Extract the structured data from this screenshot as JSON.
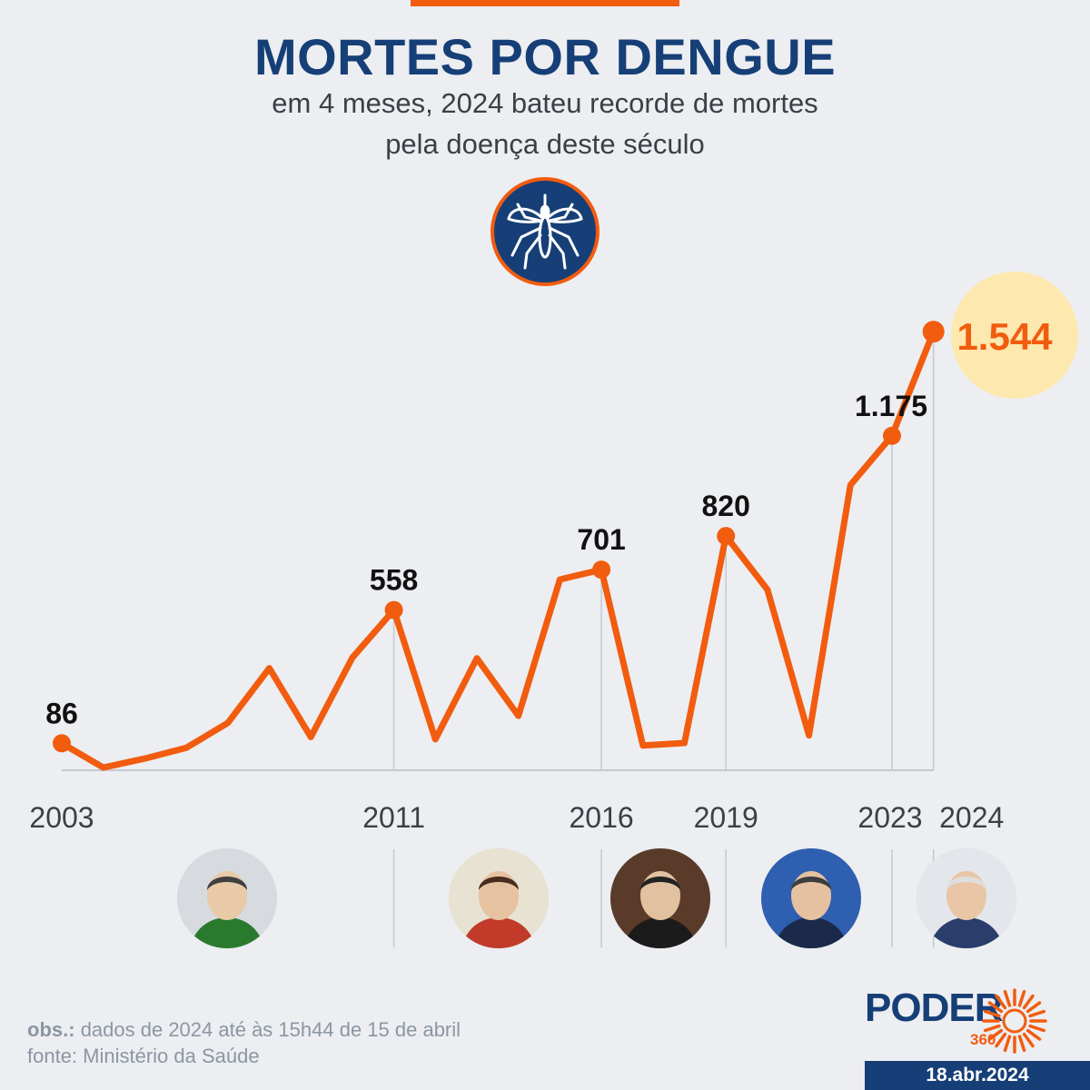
{
  "header": {
    "title": "MORTES POR DENGUE",
    "subtitle_line1": "em 4 meses, 2024 bateu recorde de mortes",
    "subtitle_line2": "pela doença deste século",
    "icon": "mosquito-icon"
  },
  "chart_data": {
    "type": "line",
    "title": "MORTES POR DENGUE",
    "x": [
      2003,
      2004,
      2005,
      2006,
      2007,
      2008,
      2009,
      2010,
      2011,
      2012,
      2013,
      2014,
      2015,
      2016,
      2017,
      2018,
      2019,
      2020,
      2021,
      2022,
      2023,
      2024
    ],
    "values": [
      86,
      0,
      32,
      70,
      158,
      352,
      108,
      389,
      558,
      100,
      387,
      183,
      666,
      701,
      78,
      87,
      820,
      630,
      114,
      1001,
      1175,
      1544
    ],
    "labeled_points": [
      {
        "x": 2003,
        "label": "86"
      },
      {
        "x": 2011,
        "label": "558"
      },
      {
        "x": 2016,
        "label": "701"
      },
      {
        "x": 2019,
        "label": "820"
      },
      {
        "x": 2023,
        "label": "1.175"
      },
      {
        "x": 2024,
        "label": "1.544"
      }
    ],
    "tick_labels": [
      "2003",
      "2011",
      "2016",
      "2019",
      "2023",
      "2024"
    ],
    "highlight": "2024",
    "colors": {
      "line": "#f25c0f",
      "highlight_bg": "#fde9b0",
      "highlight_text": "#f25c0f",
      "grid": "#c4c9d1",
      "axis": "#c4c9d1"
    },
    "grid": false
  },
  "presidents": [
    {
      "icon": "portrait-lula-2003",
      "from": 2003,
      "to": 2011
    },
    {
      "icon": "portrait-dilma",
      "from": 2011,
      "to": 2016
    },
    {
      "icon": "portrait-temer",
      "from": 2016,
      "to": 2019
    },
    {
      "icon": "portrait-bolsonaro",
      "from": 2019,
      "to": 2023
    },
    {
      "icon": "portrait-lula-2023",
      "from": 2023,
      "to": 2024
    }
  ],
  "footer": {
    "obs_label": "obs.:",
    "obs_text": "dados de 2024 até às 15h44 de 15 de abril",
    "source": "fonte: Ministério da Saúde"
  },
  "brand": {
    "name": "PODER",
    "number": "360",
    "date": "18.abr.2024",
    "colors": {
      "blue": "#163f77",
      "orange": "#f25c0f"
    }
  }
}
